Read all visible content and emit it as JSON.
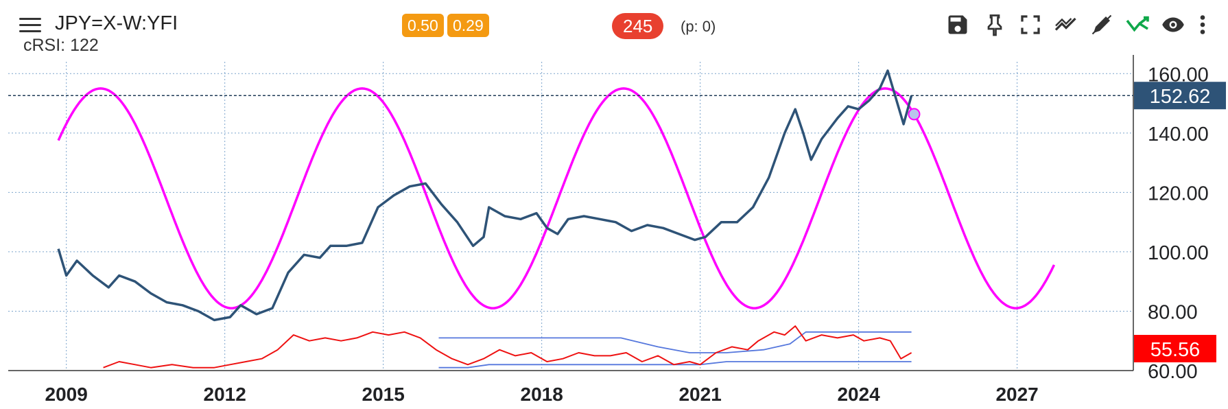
{
  "header": {
    "symbol": "JPY=X-W:YFI",
    "indicator": "cRSI: 122",
    "badge_a": "0.50",
    "badge_b": "0.29",
    "cycle_badge": "245",
    "p_value": "(p: 0)",
    "toolbar_icons": [
      "save-icon",
      "pin-icon",
      "fullscreen-icon",
      "trend-icon",
      "draw-icon",
      "forecast-icon",
      "eye-icon",
      "more-icon"
    ]
  },
  "chart_data": {
    "type": "line",
    "title": "JPY=X-W:YFI",
    "x_ticks": [
      "2009",
      "2012",
      "2015",
      "2018",
      "2021",
      "2024",
      "2027"
    ],
    "y_ticks": [
      "160.00",
      "140.00",
      "120.00",
      "100.00",
      "80.00",
      "60.00"
    ],
    "ylim": [
      60,
      164
    ],
    "xlim": [
      2007.9,
      2029.2
    ],
    "grid": true,
    "last_price": "152.62",
    "last_price_value": 152.62,
    "rsi_last": "55.56",
    "colors": {
      "price": "#2e5377",
      "cycle": "#ff00ff",
      "rsi": "#ee1111",
      "bands": "#5577dd",
      "price_label": "#2e5377",
      "rsi_label": "#ff0000"
    },
    "series": [
      {
        "name": "JPY=X",
        "values": [
          [
            2008.85,
            101
          ],
          [
            2009.0,
            92
          ],
          [
            2009.2,
            97
          ],
          [
            2009.5,
            92
          ],
          [
            2009.8,
            88
          ],
          [
            2010.0,
            92
          ],
          [
            2010.3,
            90
          ],
          [
            2010.6,
            86
          ],
          [
            2010.9,
            83
          ],
          [
            2011.2,
            82
          ],
          [
            2011.5,
            80
          ],
          [
            2011.8,
            77
          ],
          [
            2012.1,
            78
          ],
          [
            2012.3,
            82
          ],
          [
            2012.6,
            79
          ],
          [
            2012.9,
            81
          ],
          [
            2013.2,
            93
          ],
          [
            2013.5,
            99
          ],
          [
            2013.8,
            98
          ],
          [
            2014.0,
            102
          ],
          [
            2014.3,
            102
          ],
          [
            2014.6,
            103
          ],
          [
            2014.9,
            115
          ],
          [
            2015.2,
            119
          ],
          [
            2015.5,
            122
          ],
          [
            2015.8,
            123
          ],
          [
            2016.1,
            116
          ],
          [
            2016.4,
            110
          ],
          [
            2016.7,
            102
          ],
          [
            2016.9,
            105
          ],
          [
            2017.0,
            115
          ],
          [
            2017.3,
            112
          ],
          [
            2017.6,
            111
          ],
          [
            2017.9,
            113
          ],
          [
            2018.1,
            108
          ],
          [
            2018.3,
            106
          ],
          [
            2018.5,
            111
          ],
          [
            2018.8,
            112
          ],
          [
            2019.1,
            111
          ],
          [
            2019.4,
            110
          ],
          [
            2019.7,
            107
          ],
          [
            2020.0,
            109
          ],
          [
            2020.3,
            108
          ],
          [
            2020.6,
            106
          ],
          [
            2020.9,
            104
          ],
          [
            2021.1,
            105
          ],
          [
            2021.4,
            110
          ],
          [
            2021.7,
            110
          ],
          [
            2022.0,
            115
          ],
          [
            2022.3,
            125
          ],
          [
            2022.6,
            140
          ],
          [
            2022.8,
            148
          ],
          [
            2022.95,
            140
          ],
          [
            2023.1,
            131
          ],
          [
            2023.3,
            138
          ],
          [
            2023.6,
            145
          ],
          [
            2023.8,
            149
          ],
          [
            2024.0,
            148
          ],
          [
            2024.2,
            151
          ],
          [
            2024.4,
            155
          ],
          [
            2024.55,
            161
          ],
          [
            2024.7,
            152
          ],
          [
            2024.85,
            143
          ],
          [
            2025.0,
            152.62
          ]
        ]
      },
      {
        "name": "cycle",
        "amplitude": 37.0,
        "mid": 118.0,
        "period": 4.95,
        "peak_at": 2009.65,
        "start": 2008.85,
        "end": 2027.7,
        "marker_at": 2025.05
      },
      {
        "name": "cRSI",
        "values": [
          [
            2009.7,
            61
          ],
          [
            2010.0,
            63
          ],
          [
            2010.3,
            62
          ],
          [
            2010.6,
            61
          ],
          [
            2011.0,
            62
          ],
          [
            2011.4,
            61
          ],
          [
            2011.8,
            61
          ],
          [
            2012.1,
            62
          ],
          [
            2012.4,
            63
          ],
          [
            2012.7,
            64
          ],
          [
            2013.0,
            67
          ],
          [
            2013.3,
            72
          ],
          [
            2013.6,
            70
          ],
          [
            2013.9,
            71
          ],
          [
            2014.2,
            70
          ],
          [
            2014.5,
            71
          ],
          [
            2014.8,
            73
          ],
          [
            2015.1,
            72
          ],
          [
            2015.4,
            73
          ],
          [
            2015.7,
            71
          ],
          [
            2016.0,
            67
          ],
          [
            2016.3,
            64
          ],
          [
            2016.6,
            62
          ],
          [
            2016.9,
            64
          ],
          [
            2017.2,
            67
          ],
          [
            2017.5,
            65
          ],
          [
            2017.8,
            66
          ],
          [
            2018.1,
            63
          ],
          [
            2018.4,
            64
          ],
          [
            2018.7,
            66
          ],
          [
            2019.0,
            65
          ],
          [
            2019.3,
            65
          ],
          [
            2019.6,
            66
          ],
          [
            2019.9,
            63
          ],
          [
            2020.2,
            65
          ],
          [
            2020.5,
            62
          ],
          [
            2020.8,
            63
          ],
          [
            2021.0,
            62
          ],
          [
            2021.3,
            66
          ],
          [
            2021.6,
            68
          ],
          [
            2021.9,
            67
          ],
          [
            2022.1,
            70
          ],
          [
            2022.4,
            73
          ],
          [
            2022.6,
            72
          ],
          [
            2022.8,
            75
          ],
          [
            2023.0,
            70
          ],
          [
            2023.3,
            72
          ],
          [
            2023.6,
            71
          ],
          [
            2023.9,
            72
          ],
          [
            2024.1,
            70
          ],
          [
            2024.4,
            71
          ],
          [
            2024.6,
            70
          ],
          [
            2024.8,
            64
          ],
          [
            2025.0,
            66
          ]
        ]
      },
      {
        "name": "upper-band",
        "values": [
          [
            2016.05,
            71
          ],
          [
            2019.5,
            71
          ],
          [
            2020.2,
            68
          ],
          [
            2020.8,
            66
          ],
          [
            2021.5,
            66
          ],
          [
            2022.2,
            67
          ],
          [
            2022.7,
            69
          ],
          [
            2023.0,
            73
          ],
          [
            2024.0,
            73
          ],
          [
            2025.0,
            73
          ]
        ]
      },
      {
        "name": "lower-band",
        "values": [
          [
            2016.05,
            61
          ],
          [
            2016.6,
            61
          ],
          [
            2017.0,
            62
          ],
          [
            2018.0,
            62
          ],
          [
            2019.0,
            62
          ],
          [
            2020.0,
            62
          ],
          [
            2021.0,
            62
          ],
          [
            2021.5,
            63
          ],
          [
            2022.5,
            63
          ],
          [
            2023.5,
            63
          ],
          [
            2025.0,
            63
          ]
        ]
      }
    ]
  }
}
